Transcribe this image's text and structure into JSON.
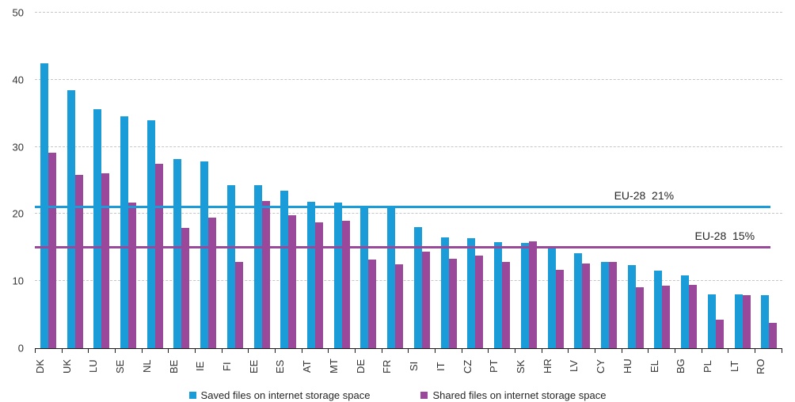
{
  "chart_data": {
    "type": "bar",
    "title": "",
    "xlabel": "",
    "ylabel": "",
    "ylim": [
      0,
      50
    ],
    "yticks": [
      0,
      10,
      20,
      30,
      40,
      50
    ],
    "grid": "horizontal-dashed",
    "legend_position": "bottom",
    "categories": [
      "DK",
      "UK",
      "LU",
      "SE",
      "NL",
      "BE",
      "IE",
      "FI",
      "EE",
      "ES",
      "AT",
      "MT",
      "DE",
      "FR",
      "SI",
      "IT",
      "CZ",
      "PT",
      "SK",
      "HR",
      "LV",
      "CY",
      "HU",
      "EL",
      "BG",
      "PL",
      "LT",
      "RO"
    ],
    "series": [
      {
        "name": "Saved files on internet storage space",
        "color": "#199CD8",
        "values": [
          42.4,
          38.4,
          35.6,
          34.6,
          34.0,
          28.2,
          27.8,
          24.3,
          24.3,
          23.5,
          21.8,
          21.7,
          21.0,
          21.0,
          18.1,
          16.5,
          16.4,
          15.8,
          15.7,
          15.0,
          14.1,
          12.9,
          12.4,
          11.5,
          10.8,
          8.0,
          8.0,
          7.9
        ]
      },
      {
        "name": "Shared files on internet storage space",
        "color": "#9A489A",
        "values": [
          29.1,
          25.8,
          26.1,
          21.7,
          27.5,
          17.9,
          19.5,
          12.9,
          21.9,
          19.8,
          18.7,
          19.0,
          13.2,
          12.5,
          14.4,
          13.3,
          13.8,
          12.9,
          15.9,
          11.7,
          12.6,
          12.9,
          9.1,
          9.3,
          9.4,
          4.2,
          7.9,
          3.8
        ]
      }
    ],
    "reference_lines": [
      {
        "label": "EU-28  21%",
        "value": 21,
        "color": "#199CD8",
        "label_left_pct": 77.5
      },
      {
        "label": "EU-28  15%",
        "value": 15,
        "color": "#9A489A",
        "label_left_pct": 88.3
      }
    ]
  }
}
